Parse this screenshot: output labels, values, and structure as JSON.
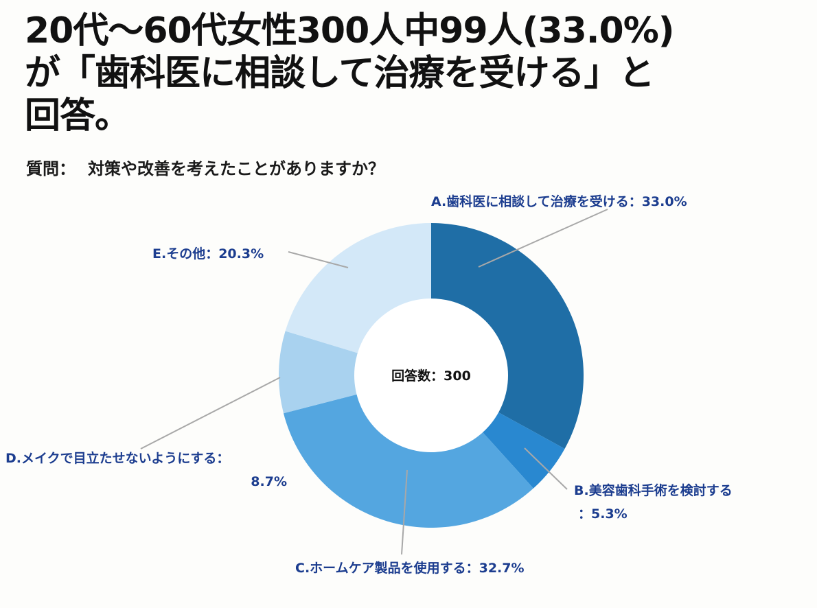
{
  "title": {
    "line1": "20代〜60代女性300人中99人(33.0%)",
    "line2": "が「歯科医に相談して治療を受ける」と",
    "line3": "回答。"
  },
  "question": {
    "label": "質問：",
    "text": "対策や改善を考えたことがありますか？"
  },
  "chart_data": {
    "type": "pie",
    "variant": "donut",
    "center_label": "回答数：300",
    "slices": [
      {
        "name": "A",
        "label": "A.歯科医に相談して治療を受ける：33.0%",
        "value": 33.0,
        "color": "#1f6ea6"
      },
      {
        "name": "B",
        "label_line1": "B.美容歯科手術を検討する",
        "label_line2": "：5.3%",
        "value": 5.3,
        "color": "#2988d0"
      },
      {
        "name": "C",
        "label": "C.ホームケア製品を使用する：32.7%",
        "value": 32.7,
        "color": "#54a6e0"
      },
      {
        "name": "D",
        "label_line1": "D.メイクで目立たせないようにする：",
        "label_line2": "8.7%",
        "value": 8.7,
        "color": "#a9d2ef"
      },
      {
        "name": "E",
        "label": "E.その他：20.3%",
        "value": 20.3,
        "color": "#d3e8f8"
      }
    ]
  }
}
